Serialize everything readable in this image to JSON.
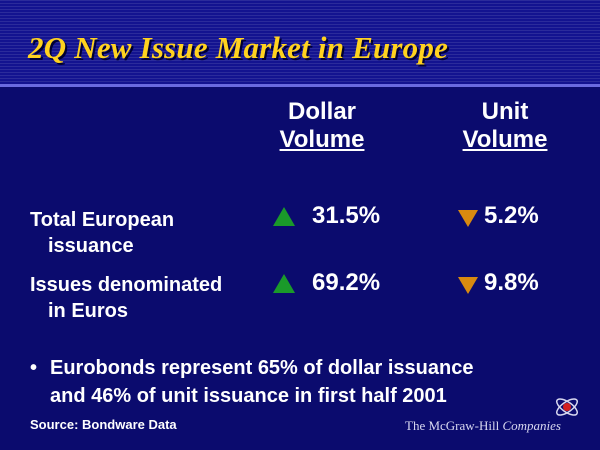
{
  "slide": {
    "title": "2Q New Issue Market in Europe",
    "columns": [
      {
        "line1": "Dollar",
        "line2": "Volume"
      },
      {
        "line1": "Unit",
        "line2": "Volume"
      }
    ],
    "rows": [
      {
        "label_line1": "Total European",
        "label_line2": "issuance",
        "dollar_value": "31.5%",
        "dollar_direction": "up",
        "unit_value": "5.2%",
        "unit_direction": "down"
      },
      {
        "label_line1": "Issues denominated",
        "label_line2": "in Euros",
        "dollar_value": "69.2%",
        "dollar_direction": "up",
        "unit_value": "9.8%",
        "unit_direction": "down"
      }
    ],
    "bullet": {
      "symbol": "•",
      "line1": "Eurobonds represent 65% of dollar issuance",
      "line2": "and 46% of unit issuance in first half 2001"
    },
    "source": "Source: Bondware Data",
    "logo": {
      "part1": "The McGraw-Hill",
      "part2": " Companies"
    },
    "colors": {
      "background": "#0b0b6e",
      "title": "#ffd21f",
      "up_arrow": "#1a9a2a",
      "down_arrow": "#d98a10"
    },
    "icons": {
      "up": "triangle-up-icon",
      "down": "triangle-down-icon",
      "logo": "mcgraw-hill-logo-icon"
    }
  }
}
